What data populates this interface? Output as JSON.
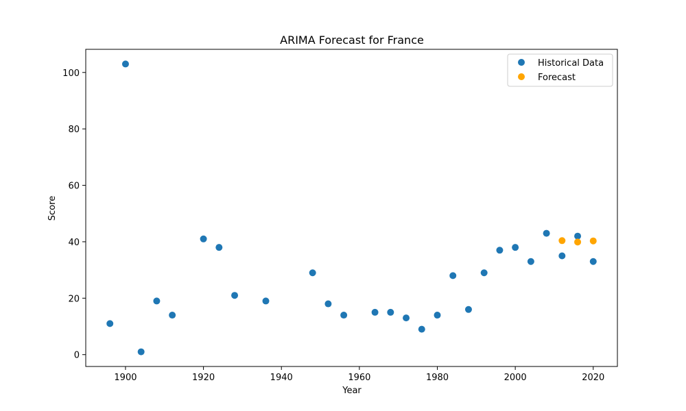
{
  "chart_data": {
    "type": "scatter",
    "title": "ARIMA Forecast for France",
    "xlabel": "Year",
    "ylabel": "Score",
    "xlim": [
      1889.8,
      2026.2
    ],
    "ylim": [
      -4.2,
      108.2
    ],
    "xticks": [
      1900,
      1920,
      1940,
      1960,
      1980,
      2000,
      2020
    ],
    "yticks": [
      0,
      20,
      40,
      60,
      80,
      100
    ],
    "grid": false,
    "legend_position": "top-right",
    "series": [
      {
        "name": "Historical Data",
        "color": "#1f77b4",
        "points": [
          {
            "x": 1896,
            "y": 11
          },
          {
            "x": 1900,
            "y": 103
          },
          {
            "x": 1904,
            "y": 1
          },
          {
            "x": 1908,
            "y": 19
          },
          {
            "x": 1912,
            "y": 14
          },
          {
            "x": 1920,
            "y": 41
          },
          {
            "x": 1924,
            "y": 38
          },
          {
            "x": 1928,
            "y": 21
          },
          {
            "x": 1936,
            "y": 19
          },
          {
            "x": 1948,
            "y": 29
          },
          {
            "x": 1952,
            "y": 18
          },
          {
            "x": 1956,
            "y": 14
          },
          {
            "x": 1964,
            "y": 15
          },
          {
            "x": 1968,
            "y": 15
          },
          {
            "x": 1972,
            "y": 13
          },
          {
            "x": 1976,
            "y": 9
          },
          {
            "x": 1980,
            "y": 14
          },
          {
            "x": 1984,
            "y": 28
          },
          {
            "x": 1988,
            "y": 16
          },
          {
            "x": 1992,
            "y": 29
          },
          {
            "x": 1996,
            "y": 37
          },
          {
            "x": 2000,
            "y": 38
          },
          {
            "x": 2004,
            "y": 33
          },
          {
            "x": 2008,
            "y": 43
          },
          {
            "x": 2012,
            "y": 35
          },
          {
            "x": 2016,
            "y": 42
          },
          {
            "x": 2020,
            "y": 33
          }
        ]
      },
      {
        "name": "Forecast",
        "color": "#ffa500",
        "points": [
          {
            "x": 2012,
            "y": 40.4
          },
          {
            "x": 2016,
            "y": 39.9
          },
          {
            "x": 2020,
            "y": 40.3
          }
        ]
      }
    ]
  }
}
